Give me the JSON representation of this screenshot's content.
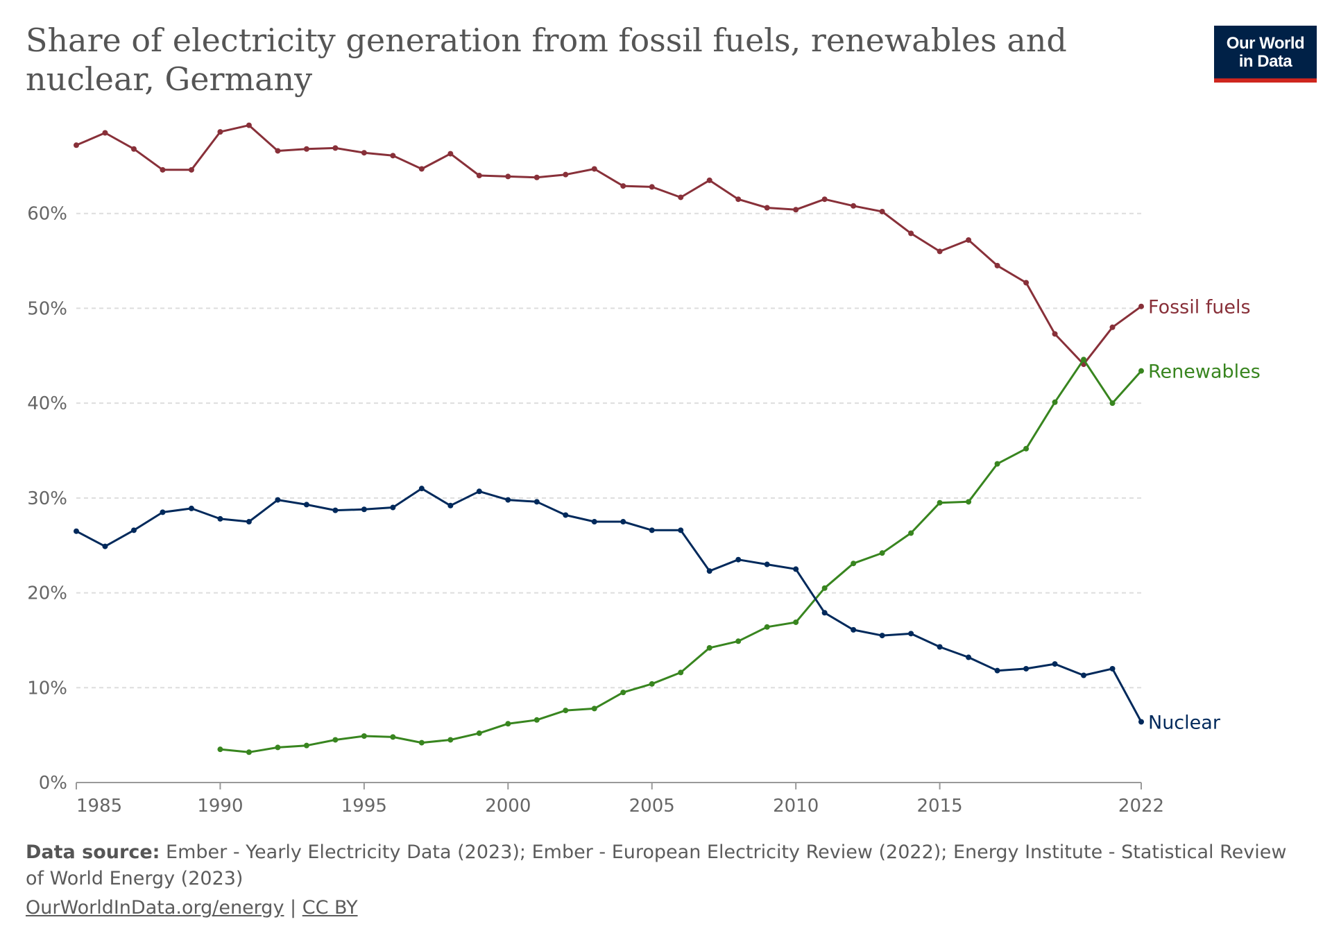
{
  "title": "Share of electricity generation from fossil fuels, renewables and nuclear, Germany",
  "logo": {
    "line1": "Our World",
    "line2": "in Data"
  },
  "footer": {
    "source_label": "Data source:",
    "source_text": "Ember - Yearly Electricity Data (2023); Ember - European Electricity Review (2022); Energy Institute - Statistical Review of World Energy (2023)",
    "link": "OurWorldInData.org/energy",
    "separator": "|",
    "license": "CC BY"
  },
  "chart_data": {
    "type": "line",
    "x_ticks": [
      "1985",
      "1990",
      "1995",
      "2000",
      "2005",
      "2010",
      "2015",
      "2022"
    ],
    "x_tick_values": [
      1985,
      1990,
      1995,
      2000,
      2005,
      2010,
      2015,
      2022
    ],
    "y_ticks": [
      "0%",
      "10%",
      "20%",
      "30%",
      "40%",
      "50%",
      "60%"
    ],
    "y_tick_values": [
      0,
      10,
      20,
      30,
      40,
      50,
      60
    ],
    "xlim": [
      1985,
      2022
    ],
    "ylim": [
      0,
      70
    ],
    "grid": "horizontal-dashed",
    "legend": "right-end-labels",
    "series": [
      {
        "name": "Fossil fuels",
        "color": "#883039",
        "x": [
          1985,
          1986,
          1987,
          1988,
          1989,
          1990,
          1991,
          1992,
          1993,
          1994,
          1995,
          1996,
          1997,
          1998,
          1999,
          2000,
          2001,
          2002,
          2003,
          2004,
          2005,
          2006,
          2007,
          2008,
          2009,
          2010,
          2011,
          2012,
          2013,
          2014,
          2015,
          2016,
          2017,
          2018,
          2019,
          2020,
          2021,
          2022
        ],
        "values": [
          67.2,
          68.5,
          66.8,
          64.6,
          64.6,
          68.6,
          69.3,
          66.6,
          66.8,
          66.9,
          66.4,
          66.1,
          64.7,
          66.3,
          64.0,
          63.9,
          63.8,
          64.1,
          64.7,
          62.9,
          62.8,
          61.7,
          63.5,
          61.5,
          60.6,
          60.4,
          61.5,
          60.8,
          60.2,
          57.9,
          56.0,
          57.2,
          54.5,
          52.7,
          47.3,
          44.1,
          48.0,
          50.2
        ]
      },
      {
        "name": "Renewables",
        "color": "#38851f",
        "x": [
          1990,
          1991,
          1992,
          1993,
          1994,
          1995,
          1996,
          1997,
          1998,
          1999,
          2000,
          2001,
          2002,
          2003,
          2004,
          2005,
          2006,
          2007,
          2008,
          2009,
          2010,
          2011,
          2012,
          2013,
          2014,
          2015,
          2016,
          2017,
          2018,
          2019,
          2020,
          2021,
          2022
        ],
        "values": [
          3.5,
          3.2,
          3.7,
          3.9,
          4.5,
          4.9,
          4.8,
          4.2,
          4.5,
          5.2,
          6.2,
          6.6,
          7.6,
          7.8,
          9.5,
          10.4,
          11.6,
          14.2,
          14.9,
          16.4,
          16.9,
          20.5,
          23.1,
          24.2,
          26.3,
          29.5,
          29.6,
          33.6,
          35.2,
          40.1,
          44.6,
          40.0,
          43.4
        ]
      },
      {
        "name": "Nuclear",
        "color": "#00295b",
        "x": [
          1985,
          1986,
          1987,
          1988,
          1989,
          1990,
          1991,
          1992,
          1993,
          1994,
          1995,
          1996,
          1997,
          1998,
          1999,
          2000,
          2001,
          2002,
          2003,
          2004,
          2005,
          2006,
          2007,
          2008,
          2009,
          2010,
          2011,
          2012,
          2013,
          2014,
          2015,
          2016,
          2017,
          2018,
          2019,
          2020,
          2021,
          2022
        ],
        "values": [
          26.5,
          24.9,
          26.6,
          28.5,
          28.9,
          27.8,
          27.5,
          29.8,
          29.3,
          28.7,
          28.8,
          29.0,
          31.0,
          29.2,
          30.7,
          29.8,
          29.6,
          28.2,
          27.5,
          27.5,
          26.6,
          26.6,
          22.3,
          23.5,
          23.0,
          22.5,
          17.9,
          16.1,
          15.5,
          15.7,
          14.3,
          13.2,
          11.8,
          12.0,
          12.5,
          11.3,
          12.0,
          6.4
        ]
      }
    ]
  }
}
